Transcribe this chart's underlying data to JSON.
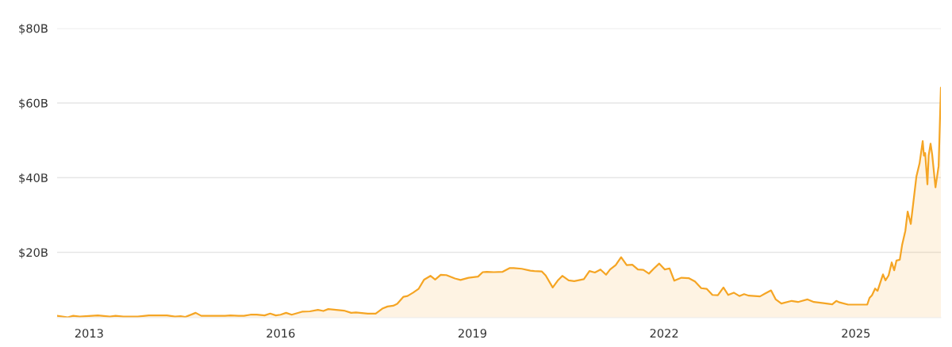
{
  "chart_data": {
    "type": "area",
    "x": [
      "2012-07-02",
      "2012-09-01",
      "2012-10-02",
      "2012-11-08",
      "2013-02-20",
      "2013-04-30",
      "2013-06-01",
      "2013-07-16",
      "2013-10-06",
      "2013-12-08",
      "2014-03-22",
      "2014-05-07",
      "2014-06-08",
      "2014-07-05",
      "2014-09-02",
      "2014-10-04",
      "2015-02-17",
      "2015-03-20",
      "2015-05-05",
      "2015-06-05",
      "2015-07-12",
      "2015-08-17",
      "2015-10-01",
      "2015-11-02",
      "2015-12-04",
      "2015-12-31",
      "2016-02-01",
      "2016-03-04",
      "2016-05-02",
      "2016-06-16",
      "2016-08-01",
      "2016-09-01",
      "2016-09-29",
      "2016-11-13",
      "2016-12-28",
      "2017-02-07",
      "2017-03-06",
      "2017-05-13",
      "2017-06-27",
      "2017-08-07",
      "2017-09-03",
      "2017-10-05",
      "2017-10-28",
      "2017-12-03",
      "2017-12-26",
      "2018-01-27",
      "2018-02-27",
      "2018-03-31",
      "2018-05-06",
      "2018-06-02",
      "2018-07-04",
      "2018-08-05",
      "2018-09-23",
      "2018-10-25",
      "2018-12-10",
      "2019-02-02",
      "2019-03-01",
      "2019-03-24",
      "2019-05-04",
      "2019-06-23",
      "2019-08-03",
      "2019-08-25",
      "2019-10-10",
      "2019-11-28",
      "2019-12-21",
      "2020-02-01",
      "2020-02-24",
      "2020-04-04",
      "2020-05-02",
      "2020-05-29",
      "2020-07-04",
      "2020-08-05",
      "2020-09-29",
      "2020-10-31",
      "2020-12-01",
      "2021-01-02",
      "2021-02-03",
      "2021-02-26",
      "2021-03-30",
      "2021-04-30",
      "2021-06-01",
      "2021-07-03",
      "2021-08-04",
      "2021-09-04",
      "2021-10-06",
      "2021-11-02",
      "2021-12-04",
      "2022-01-05",
      "2022-02-01",
      "2022-02-28",
      "2022-04-10",
      "2022-05-21",
      "2022-06-26",
      "2022-08-01",
      "2022-09-02",
      "2022-10-04",
      "2022-11-04",
      "2022-12-06",
      "2023-01-02",
      "2023-02-03",
      "2023-03-07",
      "2023-04-03",
      "2023-04-30",
      "2023-07-03",
      "2023-07-30",
      "2023-09-04",
      "2023-10-01",
      "2023-11-02",
      "2023-12-31",
      "2024-02-05",
      "2024-03-31",
      "2024-05-06",
      "2024-06-30",
      "2024-08-19",
      "2024-09-11",
      "2024-09-29",
      "2024-11-18",
      "2025-03-07",
      "2025-03-20",
      "2025-04-03",
      "2025-04-21",
      "2025-05-05",
      "2025-06-05",
      "2025-06-19",
      "2025-07-07",
      "2025-07-25",
      "2025-08-08",
      "2025-08-21",
      "2025-09-09",
      "2025-09-22",
      "2025-10-11",
      "2025-10-24",
      "2025-11-11",
      "2025-12-13",
      "2025-12-31",
      "2026-01-18",
      "2026-01-25",
      "2026-02-01",
      "2026-02-14",
      "2026-02-21",
      "2026-03-04",
      "2026-03-13",
      "2026-04-01",
      "2026-04-19",
      "2026-04-23",
      "2026-05-02"
    ],
    "series": [
      {
        "color": "#f5a524",
        "values": [
          3.0,
          2.6,
          3.0,
          2.8,
          3.1,
          2.8,
          3.0,
          2.8,
          2.8,
          3.1,
          3.1,
          2.8,
          2.9,
          2.7,
          3.8,
          3.0,
          3.0,
          3.1,
          3.0,
          3.0,
          3.3,
          3.3,
          3.1,
          3.6,
          3.1,
          3.3,
          3.8,
          3.3,
          4.1,
          4.2,
          4.6,
          4.3,
          4.8,
          4.6,
          4.4,
          3.8,
          3.9,
          3.6,
          3.6,
          5.0,
          5.5,
          5.7,
          6.2,
          8.1,
          8.3,
          9.2,
          10.2,
          12.7,
          13.7,
          12.7,
          14.0,
          13.9,
          13.0,
          12.6,
          13.2,
          13.5,
          14.7,
          14.8,
          14.7,
          14.8,
          15.8,
          15.8,
          15.6,
          15.1,
          15.0,
          14.9,
          13.8,
          10.6,
          12.4,
          13.7,
          12.5,
          12.3,
          12.8,
          15.0,
          14.6,
          15.4,
          14.0,
          15.4,
          16.6,
          18.7,
          16.6,
          16.7,
          15.4,
          15.3,
          14.3,
          15.6,
          17.0,
          15.4,
          15.7,
          12.4,
          13.2,
          13.1,
          12.2,
          10.4,
          10.2,
          8.6,
          8.5,
          10.6,
          8.6,
          9.2,
          8.3,
          8.8,
          8.4,
          8.2,
          8.9,
          9.8,
          7.4,
          6.3,
          7.0,
          6.7,
          7.4,
          6.7,
          6.4,
          6.1,
          7.0,
          6.6,
          6.0,
          6.0,
          7.8,
          8.5,
          10.3,
          9.7,
          14.1,
          12.5,
          13.8,
          17.3,
          15.2,
          17.8,
          18.0,
          21.9,
          25.8,
          30.9,
          27.6,
          40.3,
          43.8,
          49.8,
          45.9,
          46.6,
          38.2,
          45.9,
          49.1,
          46.3,
          37.4,
          43.1,
          49.4,
          64.1
        ]
      }
    ],
    "xlim": [
      "2012-07-02",
      "2026-05-02"
    ],
    "xticks": [
      "2013",
      "2016",
      "2019",
      "2022",
      "2025"
    ],
    "ylim": [
      2.5,
      80
    ],
    "yticks": [
      {
        "value": 20,
        "label": "$20B"
      },
      {
        "value": 40,
        "label": "$40B"
      },
      {
        "value": 60,
        "label": "$60B"
      },
      {
        "value": 80,
        "label": "$80B"
      }
    ],
    "grid": "y"
  }
}
